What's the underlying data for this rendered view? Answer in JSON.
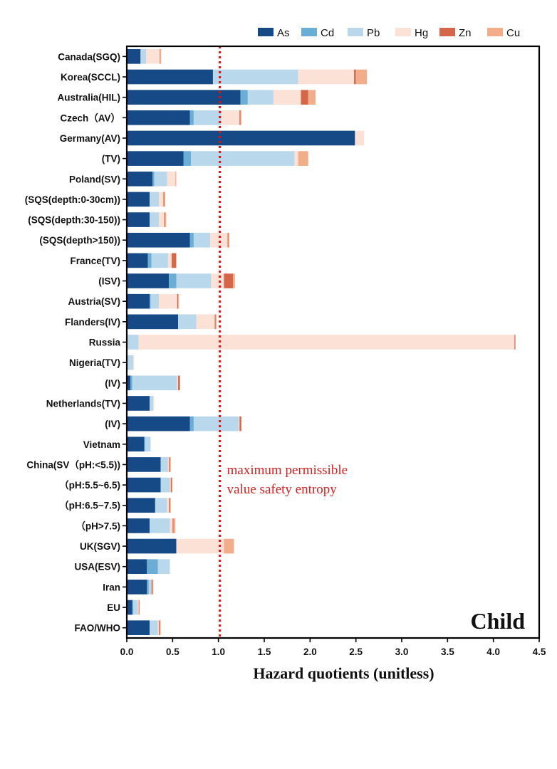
{
  "chart_data": {
    "type": "bar",
    "orientation": "horizontal",
    "stacked": true,
    "panel_label": "Child",
    "xlabel": "Hazard quotients (unitless)",
    "xlim": [
      0,
      4.5
    ],
    "xticks": [
      "0.0",
      "0.5",
      "1.0",
      "1.5",
      "2.0",
      "2.5",
      "3.0",
      "3.5",
      "4.0",
      "4.5"
    ],
    "reference_line": {
      "x": 1.0,
      "color": "#e01010",
      "style": "dotted"
    },
    "annotation": [
      "maximum permissible",
      "value safety entropy"
    ],
    "colors": {
      "As": "#154a86",
      "Cd": "#6aaed6",
      "Pb": "#b9d8ec",
      "Hg": "#fbe1d6",
      "Zn": "#d6664a",
      "Cu": "#f2ad8a"
    },
    "legend": [
      "As",
      "Cd",
      "Pb",
      "Hg",
      "Zn",
      "Cu"
    ],
    "categories": [
      "Canada(SGQ)",
      "Korea(SCCL)",
      "Australia(HIL)",
      "Czech（AV）",
      "Germany(AV)",
      "(TV)",
      "Poland(SV)",
      "(SQS(depth:0-30cm))",
      "(SQS(depth:30-150))",
      "(SQS(depth>150))",
      "France(TV)",
      "(ISV)",
      "Austria(SV)",
      "Flanders(IV)",
      "Russia",
      "Nigeria(TV)",
      "(IV)",
      "Netherlands(TV)",
      "(IV)",
      "Vietnam",
      "China(SV（pH:<5.5))",
      "（pH:5.5~6.5)",
      "（pH:6.5~7.5)",
      "（pH>7.5)",
      "UK(SGV)",
      "USA(ESV)",
      "Iran",
      "EU",
      "FAO/WHO"
    ],
    "series": [
      {
        "name": "As",
        "values": [
          0.15,
          0.94,
          1.24,
          0.69,
          2.49,
          0.62,
          0.28,
          0.25,
          0.25,
          0.69,
          0.23,
          0.46,
          0.25,
          0.56,
          0.0,
          0.0,
          0.04,
          0.25,
          0.69,
          0.19,
          0.37,
          0.37,
          0.31,
          0.25,
          0.54,
          0.22,
          0.22,
          0.06,
          0.25
        ]
      },
      {
        "name": "Cd",
        "values": [
          0.0,
          0.0,
          0.08,
          0.04,
          0.0,
          0.08,
          0.02,
          0.0,
          0.0,
          0.04,
          0.04,
          0.08,
          0.01,
          0.0,
          0.0,
          0.01,
          0.02,
          0.0,
          0.04,
          0.01,
          0.0,
          0.0,
          0.0,
          0.0,
          0.0,
          0.12,
          0.02,
          0.01,
          0.0
        ]
      },
      {
        "name": "Pb",
        "values": [
          0.06,
          0.93,
          0.28,
          0.3,
          0.0,
          1.13,
          0.14,
          0.1,
          0.1,
          0.18,
          0.18,
          0.38,
          0.09,
          0.2,
          0.13,
          0.06,
          0.49,
          0.04,
          0.49,
          0.06,
          0.08,
          0.1,
          0.13,
          0.22,
          0.0,
          0.13,
          0.03,
          0.05,
          0.09
        ]
      },
      {
        "name": "Hg",
        "values": [
          0.15,
          0.61,
          0.3,
          0.2,
          0.1,
          0.04,
          0.09,
          0.05,
          0.06,
          0.19,
          0.04,
          0.14,
          0.2,
          0.2,
          4.1,
          0.01,
          0.01,
          0.01,
          0.01,
          0.0,
          0.01,
          0.01,
          0.02,
          0.03,
          0.52,
          0.0,
          0.0,
          0.01,
          0.01
        ]
      },
      {
        "name": "Zn",
        "values": [
          0.005,
          0.02,
          0.08,
          0.01,
          0.0,
          0.0,
          0.0,
          0.01,
          0.01,
          0.01,
          0.05,
          0.1,
          0.01,
          0.01,
          0.01,
          0.0,
          0.02,
          0.0,
          0.02,
          0.0,
          0.01,
          0.01,
          0.01,
          0.01,
          0.0,
          0.0,
          0.01,
          0.005,
          0.01
        ]
      },
      {
        "name": "Cu",
        "values": [
          0.01,
          0.12,
          0.08,
          0.01,
          0.0,
          0.11,
          0.01,
          0.01,
          0.01,
          0.01,
          0.0,
          0.02,
          0.01,
          0.01,
          0.0,
          0.0,
          0.0,
          0.0,
          0.0,
          0.0,
          0.01,
          0.01,
          0.01,
          0.02,
          0.11,
          0.0,
          0.01,
          0.005,
          0.01
        ]
      }
    ]
  }
}
